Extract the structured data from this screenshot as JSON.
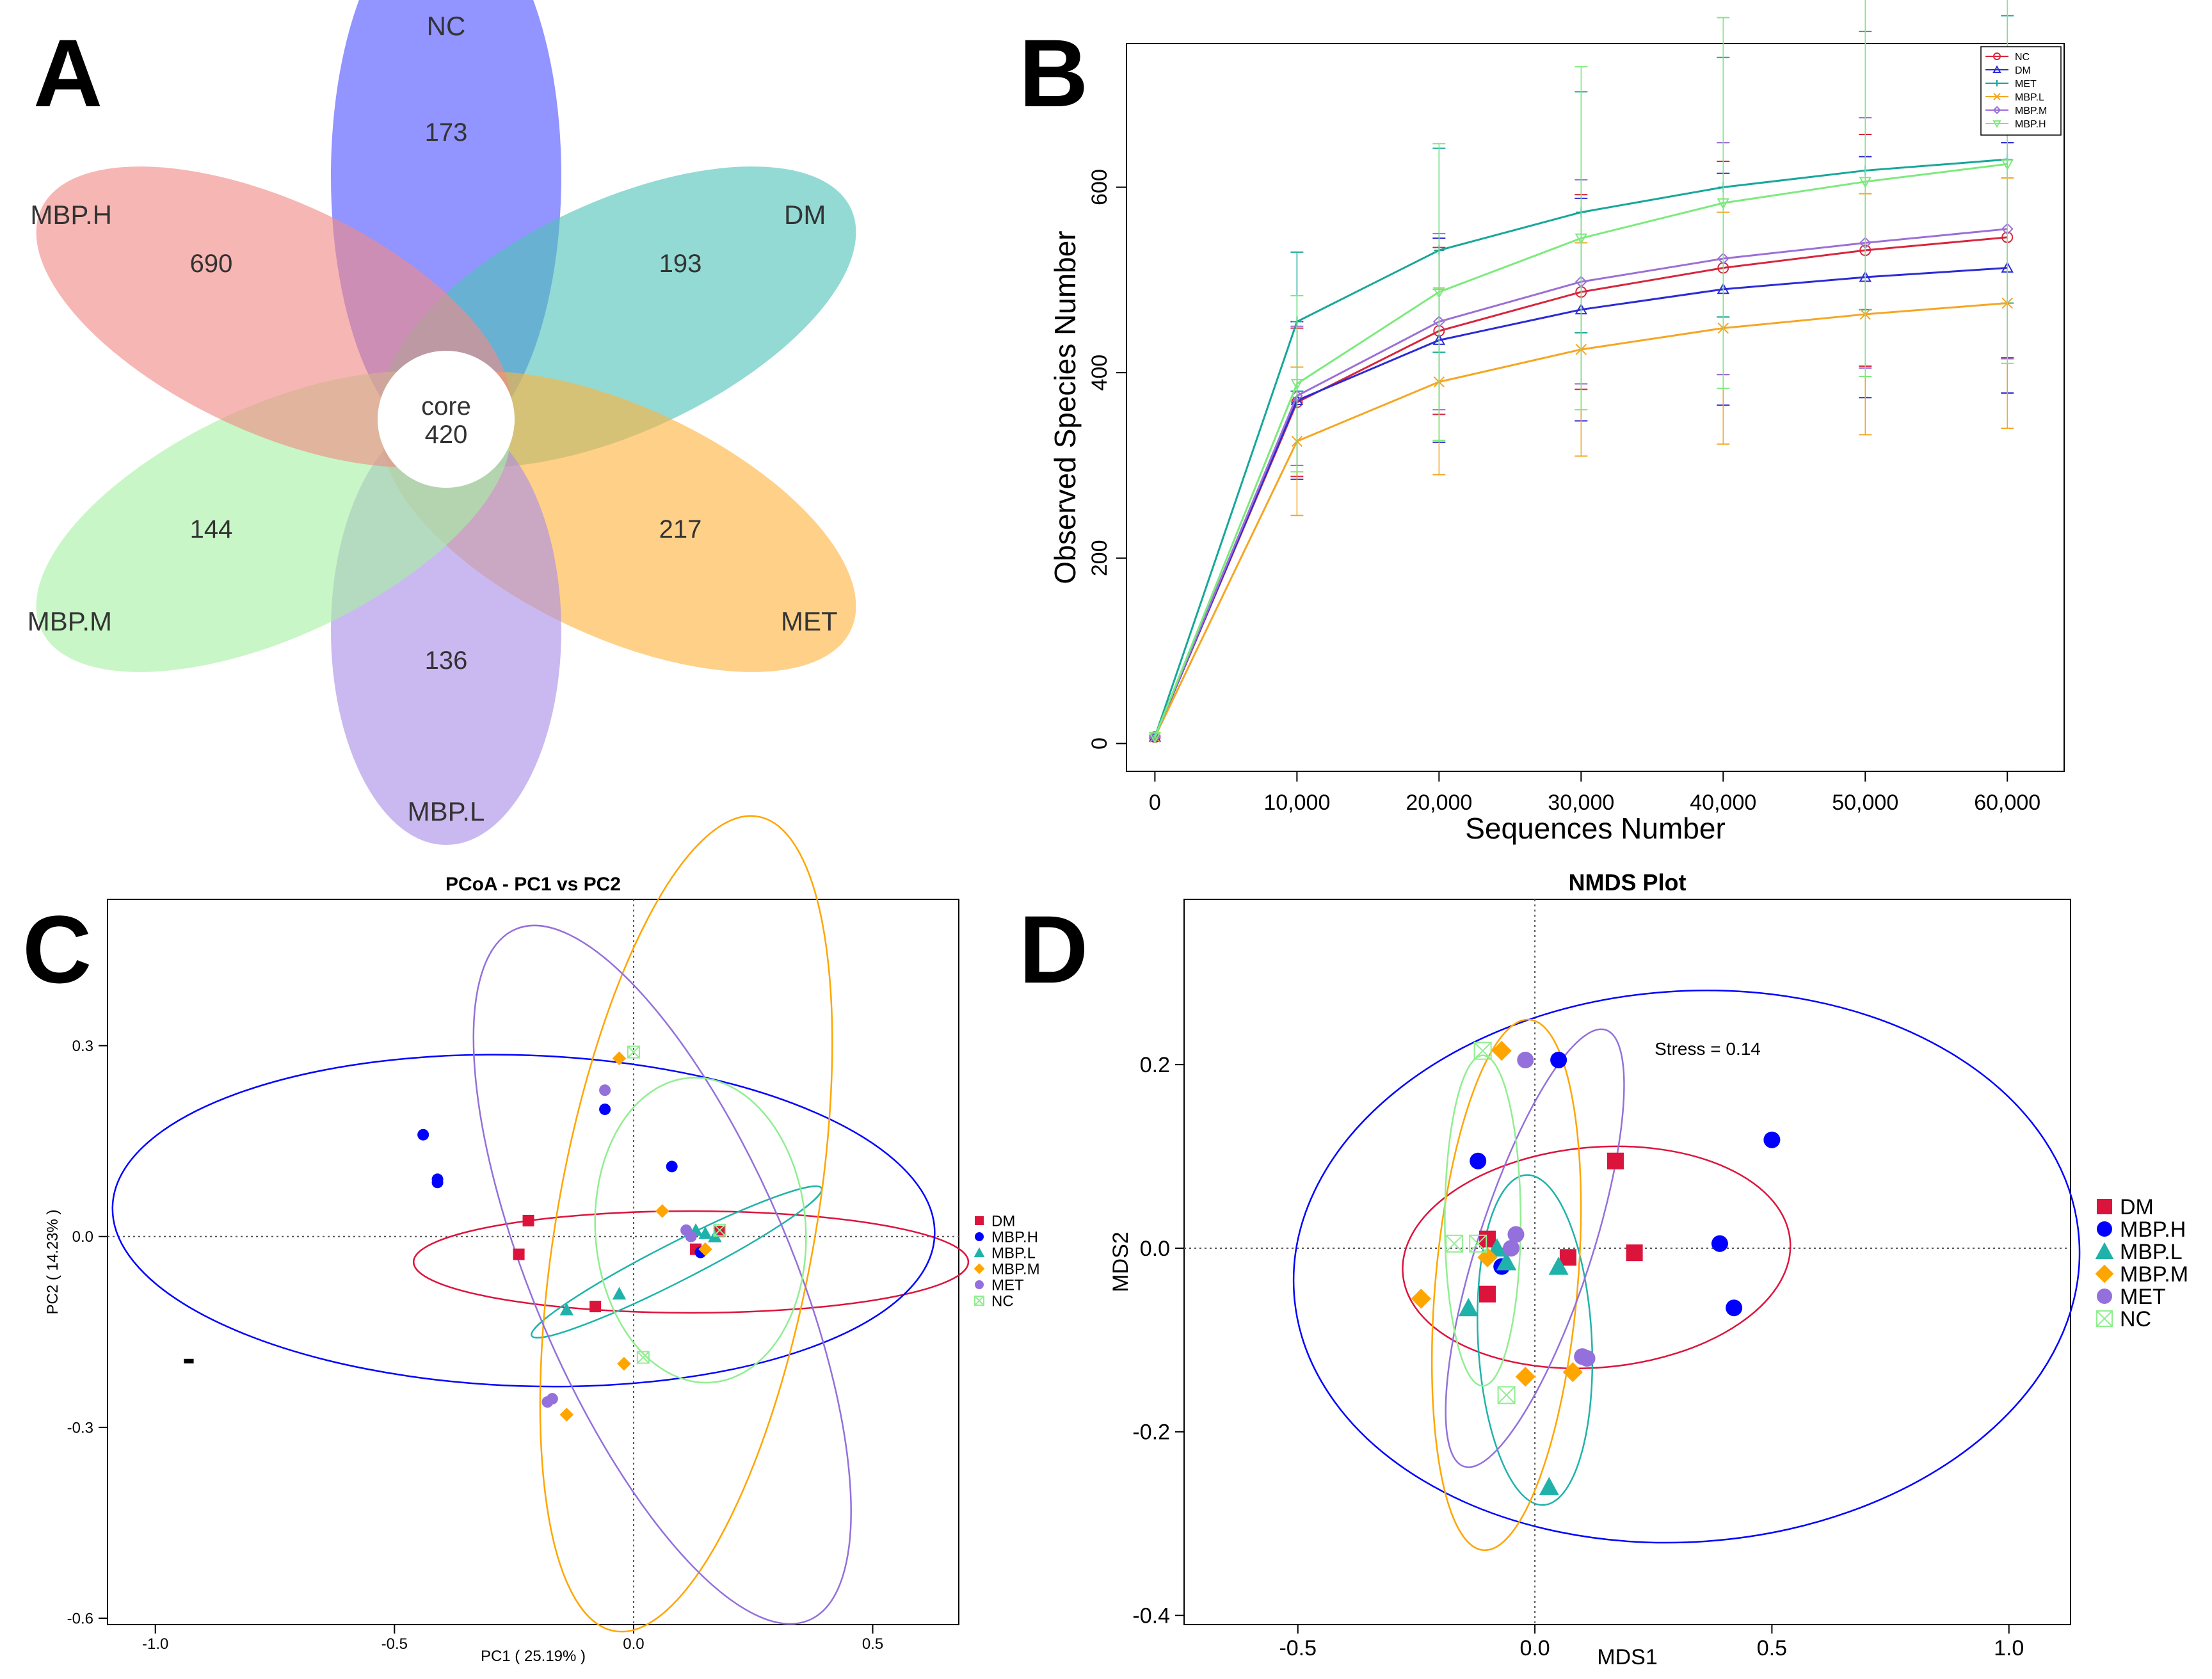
{
  "panels": {
    "A": {
      "letter": "A",
      "core_label": "core",
      "core_value": "420",
      "petals": [
        {
          "name": "NC",
          "count": "173",
          "color": "#4f52ff"
        },
        {
          "name": "DM",
          "count": "193",
          "color": "#4fc3b8"
        },
        {
          "name": "MET",
          "count": "217",
          "color": "#ffb33f"
        },
        {
          "name": "MBP.L",
          "count": "136",
          "color": "#a98ee6"
        },
        {
          "name": "MBP.M",
          "count": "144",
          "color": "#a6f0a3"
        },
        {
          "name": "MBP.H",
          "count": "690",
          "color": "#f08a86"
        }
      ]
    },
    "B": {
      "letter": "B"
    },
    "C": {
      "letter": "C",
      "marker": "-"
    },
    "D": {
      "letter": "D",
      "stress": "Stress = 0.14"
    }
  },
  "chart_data": [
    {
      "panel": "A",
      "type": "venn-flower",
      "core": 420,
      "sets": [
        "NC",
        "DM",
        "MET",
        "MBP.L",
        "MBP.M",
        "MBP.H"
      ],
      "unique_counts": {
        "NC": 173,
        "DM": 193,
        "MET": 217,
        "MBP.L": 136,
        "MBP.M": 144,
        "MBP.H": 690
      }
    },
    {
      "panel": "B",
      "type": "line",
      "title": "",
      "xlabel": "Sequences Number",
      "ylabel": "Observed Species Number",
      "xlim": [
        -2000,
        64000
      ],
      "ylim": [
        -30,
        755
      ],
      "xticks": [
        0,
        10000,
        20000,
        30000,
        40000,
        50000,
        60000
      ],
      "xtick_labels": [
        "0",
        "10,000",
        "20,000",
        "30,000",
        "40,000",
        "50,000",
        "60,000"
      ],
      "yticks": [
        0,
        200,
        400,
        600
      ],
      "ytick_labels": [
        "0",
        "200",
        "400",
        "600"
      ],
      "legend_position": "top-right",
      "x": [
        0,
        10000,
        20000,
        30000,
        40000,
        50000,
        60000
      ],
      "series": [
        {
          "name": "NC",
          "color": "#d7263d",
          "marker": "circle",
          "values": [
            7,
            368,
            445,
            487,
            513,
            532,
            546
          ],
          "err": [
            0,
            80,
            90,
            105,
            115,
            125,
            130
          ]
        },
        {
          "name": "DM",
          "color": "#2b2bd6",
          "marker": "triangle",
          "values": [
            7,
            370,
            435,
            468,
            490,
            503,
            513
          ],
          "err": [
            0,
            85,
            110,
            120,
            125,
            130,
            135
          ]
        },
        {
          "name": "MET",
          "color": "#17a79a",
          "marker": "plus",
          "values": [
            7,
            455,
            532,
            573,
            600,
            618,
            630
          ],
          "err": [
            0,
            75,
            110,
            130,
            140,
            150,
            155
          ]
        },
        {
          "name": "MBP.L",
          "color": "#f5a623",
          "marker": "x",
          "values": [
            7,
            326,
            390,
            425,
            448,
            463,
            475
          ],
          "err": [
            0,
            80,
            100,
            115,
            125,
            130,
            135
          ]
        },
        {
          "name": "MBP.M",
          "color": "#9b6fd6",
          "marker": "diamond",
          "values": [
            7,
            375,
            455,
            498,
            523,
            540,
            555
          ],
          "err": [
            0,
            75,
            95,
            110,
            125,
            135,
            140
          ]
        },
        {
          "name": "MBP.H",
          "color": "#7cea7c",
          "marker": "triangle-down",
          "values": [
            7,
            388,
            487,
            545,
            583,
            606,
            625
          ],
          "err": [
            0,
            95,
            160,
            185,
            200,
            210,
            215
          ]
        }
      ]
    },
    {
      "panel": "C",
      "type": "scatter",
      "title": "PCoA - PC1 vs PC2",
      "xlabel": "PC1 ( 25.19% )",
      "ylabel": "PC2 ( 14.23% )",
      "xlim": [
        -1.1,
        0.68
      ],
      "ylim": [
        -0.61,
        0.53
      ],
      "xticks": [
        -1.0,
        -0.5,
        0.0,
        0.5
      ],
      "xtick_labels": [
        "-1.0",
        "-0.5",
        "0.0",
        "0.5"
      ],
      "yticks": [
        0.3,
        0.0,
        -0.3,
        -0.6
      ],
      "ytick_labels": [
        "0.3",
        "0.0",
        "-0.3",
        "-0.6"
      ],
      "legend_position": "right",
      "groups": [
        {
          "name": "DM",
          "color": "#dc143c",
          "marker": "square",
          "points": [
            [
              -0.22,
              0.025
            ],
            [
              -0.24,
              -0.028
            ],
            [
              -0.08,
              -0.11
            ],
            [
              0.13,
              -0.02
            ],
            [
              0.18,
              0.008
            ]
          ],
          "ellipse": {
            "cx": 0.12,
            "cy": -0.04,
            "rx": 0.58,
            "ry": 0.08,
            "angle_deg": 0
          }
        },
        {
          "name": "MBP.H",
          "color": "#0000ff",
          "marker": "circle",
          "points": [
            [
              -0.44,
              0.16
            ],
            [
              -0.41,
              0.09
            ],
            [
              -0.41,
              0.085
            ],
            [
              -0.06,
              0.2
            ],
            [
              0.08,
              0.11
            ],
            [
              0.14,
              -0.025
            ]
          ],
          "ellipse": {
            "cx": -0.23,
            "cy": 0.025,
            "rx": 0.86,
            "ry": 0.26,
            "angle_deg": -2
          }
        },
        {
          "name": "MBP.L",
          "color": "#20b2aa",
          "marker": "triangle",
          "points": [
            [
              -0.14,
              -0.115
            ],
            [
              -0.03,
              -0.09
            ],
            [
              0.13,
              0.01
            ],
            [
              0.15,
              0.005
            ],
            [
              0.17,
              0.0
            ]
          ],
          "ellipse": {
            "cx": 0.09,
            "cy": -0.04,
            "rx": 0.34,
            "ry": 0.03,
            "angle_deg": 27
          }
        },
        {
          "name": "MBP.M",
          "color": "#ffa500",
          "marker": "diamond",
          "points": [
            [
              -0.03,
              0.28
            ],
            [
              0.06,
              0.04
            ],
            [
              -0.14,
              -0.28
            ],
            [
              -0.02,
              -0.2
            ],
            [
              0.15,
              -0.02
            ]
          ],
          "ellipse": {
            "cx": 0.11,
            "cy": 0.02,
            "rx": 0.27,
            "ry": 0.65,
            "angle_deg": -10
          }
        },
        {
          "name": "MET",
          "color": "#9370db",
          "marker": "circle",
          "points": [
            [
              -0.06,
              0.23
            ],
            [
              -0.18,
              -0.26
            ],
            [
              -0.17,
              -0.255
            ],
            [
              0.11,
              0.01
            ],
            [
              0.12,
              0.0
            ]
          ],
          "ellipse": {
            "cx": 0.06,
            "cy": -0.06,
            "rx": 0.27,
            "ry": 0.59,
            "angle_deg": 23
          }
        },
        {
          "name": "NC",
          "color": "#90ee90",
          "marker": "square-cross",
          "points": [
            [
              0.0,
              0.29
            ],
            [
              0.02,
              -0.19
            ],
            [
              0.18,
              0.01
            ]
          ],
          "ellipse": {
            "cx": 0.14,
            "cy": 0.01,
            "rx": 0.22,
            "ry": 0.24,
            "angle_deg": 4
          }
        }
      ]
    },
    {
      "panel": "D",
      "type": "scatter",
      "title": "NMDS Plot",
      "xlabel": "MDS1",
      "ylabel": "MDS2",
      "xlim": [
        -0.74,
        1.13
      ],
      "ylim": [
        -0.41,
        0.38
      ],
      "xticks": [
        -0.5,
        0.0,
        0.5,
        1.0
      ],
      "xtick_labels": [
        "-0.5",
        "0.0",
        "0.5",
        "1.0"
      ],
      "yticks": [
        0.2,
        0.0,
        -0.2,
        -0.4
      ],
      "ytick_labels": [
        "0.2",
        "0.0",
        "-0.2",
        "-0.4"
      ],
      "legend_position": "right",
      "groups": [
        {
          "name": "DM",
          "color": "#dc143c",
          "marker": "square",
          "points": [
            [
              0.17,
              0.095
            ],
            [
              0.21,
              -0.005
            ],
            [
              0.07,
              -0.01
            ],
            [
              -0.1,
              0.01
            ],
            [
              -0.1,
              -0.05
            ]
          ],
          "ellipse": {
            "cx": 0.13,
            "cy": -0.01,
            "rx": 0.41,
            "ry": 0.12,
            "angle_deg": 5
          }
        },
        {
          "name": "MBP.H",
          "color": "#0000ff",
          "marker": "circle",
          "points": [
            [
              0.05,
              0.205
            ],
            [
              -0.12,
              0.095
            ],
            [
              0.5,
              0.118
            ],
            [
              0.39,
              0.005
            ],
            [
              0.42,
              -0.065
            ],
            [
              -0.07,
              -0.02
            ]
          ],
          "ellipse": {
            "cx": 0.32,
            "cy": -0.02,
            "rx": 0.83,
            "ry": 0.3,
            "angle_deg": 4
          }
        },
        {
          "name": "MBP.L",
          "color": "#20b2aa",
          "marker": "triangle",
          "points": [
            [
              -0.14,
              -0.065
            ],
            [
              -0.08,
              0.0
            ],
            [
              -0.06,
              -0.015
            ],
            [
              0.05,
              -0.02
            ],
            [
              0.03,
              -0.26
            ]
          ],
          "ellipse": {
            "cx": 0.0,
            "cy": -0.1,
            "rx": 0.12,
            "ry": 0.18,
            "angle_deg": 3
          }
        },
        {
          "name": "MBP.M",
          "color": "#ffa500",
          "marker": "diamond",
          "points": [
            [
              -0.07,
              0.215
            ],
            [
              -0.24,
              -0.055
            ],
            [
              -0.1,
              -0.01
            ],
            [
              -0.02,
              -0.14
            ],
            [
              0.08,
              -0.135
            ]
          ],
          "ellipse": {
            "cx": -0.06,
            "cy": -0.04,
            "rx": 0.15,
            "ry": 0.29,
            "angle_deg": -5
          }
        },
        {
          "name": "MET",
          "color": "#9370db",
          "marker": "circle",
          "points": [
            [
              -0.02,
              0.205
            ],
            [
              -0.04,
              0.015
            ],
            [
              0.11,
              -0.12
            ],
            [
              0.1,
              -0.118
            ],
            [
              -0.05,
              0.0
            ]
          ],
          "ellipse": {
            "cx": 0.0,
            "cy": 0.0,
            "rx": 0.12,
            "ry": 0.25,
            "angle_deg": -18
          }
        },
        {
          "name": "NC",
          "color": "#90ee90",
          "marker": "square-cross",
          "points": [
            [
              -0.11,
              0.215
            ],
            [
              -0.17,
              0.005
            ],
            [
              -0.12,
              0.005
            ],
            [
              -0.06,
              -0.16
            ]
          ],
          "ellipse": {
            "cx": -0.11,
            "cy": 0.03,
            "rx": 0.08,
            "ry": 0.18,
            "angle_deg": 0
          }
        }
      ]
    }
  ]
}
